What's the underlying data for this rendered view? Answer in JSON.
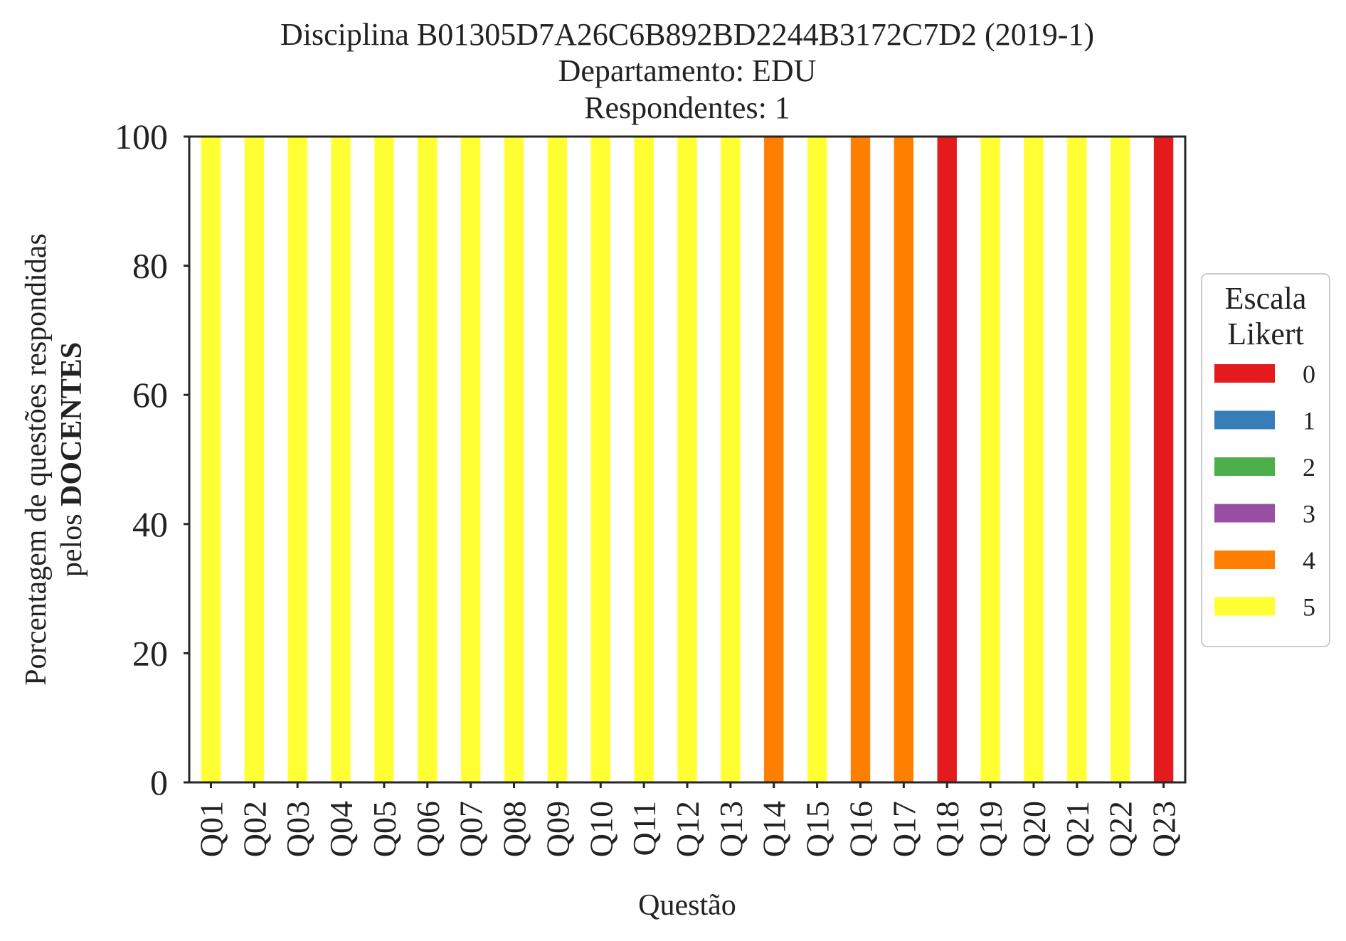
{
  "chart_data": {
    "type": "bar",
    "stacked": true,
    "title_lines": [
      "Disciplina B01305D7A26C6B892BD2244B3172C7D2 (2019-1)",
      "Departamento: EDU",
      "Respondentes: 1"
    ],
    "xlabel": "Questão",
    "ylabel_line1": "Porcentagem de questões respondidas",
    "ylabel_line2_prefix": "pelos ",
    "ylabel_line2_bold": "DOCENTES",
    "ylim": [
      0,
      100
    ],
    "yticks": [
      "0",
      "20",
      "40",
      "60",
      "80",
      "100"
    ],
    "grid": false,
    "legend_placement": "right, outside plot",
    "legend_title_lines": [
      "Escala",
      "Likert"
    ],
    "categories": [
      "Q01",
      "Q02",
      "Q03",
      "Q04",
      "Q05",
      "Q06",
      "Q07",
      "Q08",
      "Q09",
      "Q10",
      "Q11",
      "Q12",
      "Q13",
      "Q14",
      "Q15",
      "Q16",
      "Q17",
      "Q18",
      "Q19",
      "Q20",
      "Q21",
      "Q22",
      "Q23"
    ],
    "series": [
      {
        "name": "0",
        "color": "#e41a1c",
        "values": [
          0,
          0,
          0,
          0,
          0,
          0,
          0,
          0,
          0,
          0,
          0,
          0,
          0,
          0,
          0,
          0,
          0,
          100,
          0,
          0,
          0,
          0,
          100
        ]
      },
      {
        "name": "1",
        "color": "#377eb8",
        "values": [
          0,
          0,
          0,
          0,
          0,
          0,
          0,
          0,
          0,
          0,
          0,
          0,
          0,
          0,
          0,
          0,
          0,
          0,
          0,
          0,
          0,
          0,
          0
        ]
      },
      {
        "name": "2",
        "color": "#4daf4a",
        "values": [
          0,
          0,
          0,
          0,
          0,
          0,
          0,
          0,
          0,
          0,
          0,
          0,
          0,
          0,
          0,
          0,
          0,
          0,
          0,
          0,
          0,
          0,
          0
        ]
      },
      {
        "name": "3",
        "color": "#984ea3",
        "values": [
          0,
          0,
          0,
          0,
          0,
          0,
          0,
          0,
          0,
          0,
          0,
          0,
          0,
          0,
          0,
          0,
          0,
          0,
          0,
          0,
          0,
          0,
          0
        ]
      },
      {
        "name": "4",
        "color": "#ff7f00",
        "values": [
          0,
          0,
          0,
          0,
          0,
          0,
          0,
          0,
          0,
          0,
          0,
          0,
          0,
          100,
          0,
          100,
          100,
          0,
          0,
          0,
          0,
          0,
          0
        ]
      },
      {
        "name": "5",
        "color": "#ffff33",
        "values": [
          100,
          100,
          100,
          100,
          100,
          100,
          100,
          100,
          100,
          100,
          100,
          100,
          100,
          0,
          100,
          0,
          0,
          0,
          100,
          100,
          100,
          100,
          0
        ]
      }
    ]
  }
}
